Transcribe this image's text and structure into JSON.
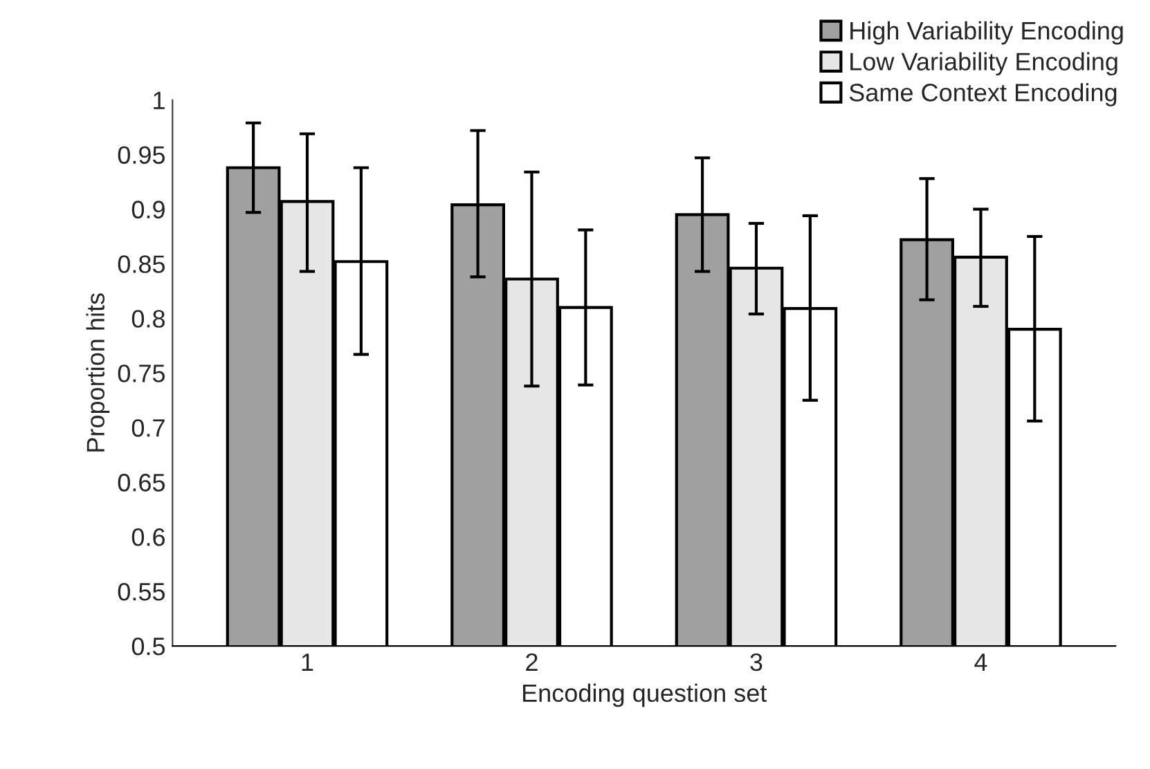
{
  "chart_data": {
    "type": "bar",
    "xlabel": "Encoding question set",
    "ylabel": "Proportion hits",
    "categories": [
      "1",
      "2",
      "3",
      "4"
    ],
    "series": [
      {
        "name": "High Variability Encoding",
        "color": "#a0a0a0",
        "values": [
          0.938,
          0.904,
          0.895,
          0.872
        ],
        "errors": [
          [
            0.897,
            0.979
          ],
          [
            0.838,
            0.972
          ],
          [
            0.843,
            0.947
          ],
          [
            0.817,
            0.928
          ]
        ]
      },
      {
        "name": "Low Variability Encoding",
        "color": "#e6e6e6",
        "values": [
          0.907,
          0.836,
          0.846,
          0.856
        ],
        "errors": [
          [
            0.843,
            0.969
          ],
          [
            0.738,
            0.934
          ],
          [
            0.804,
            0.887
          ],
          [
            0.811,
            0.9
          ]
        ]
      },
      {
        "name": "Same Context Encoding",
        "color": "#ffffff",
        "values": [
          0.852,
          0.81,
          0.809,
          0.79
        ],
        "errors": [
          [
            0.767,
            0.938
          ],
          [
            0.739,
            0.881
          ],
          [
            0.725,
            0.894
          ],
          [
            0.706,
            0.875
          ]
        ]
      }
    ],
    "ylim": [
      0.5,
      1
    ],
    "yticks": [
      0.5,
      0.55,
      0.6,
      0.65,
      0.7,
      0.75,
      0.8,
      0.85,
      0.9,
      0.95,
      1
    ],
    "grid": false,
    "legend": "top right"
  }
}
